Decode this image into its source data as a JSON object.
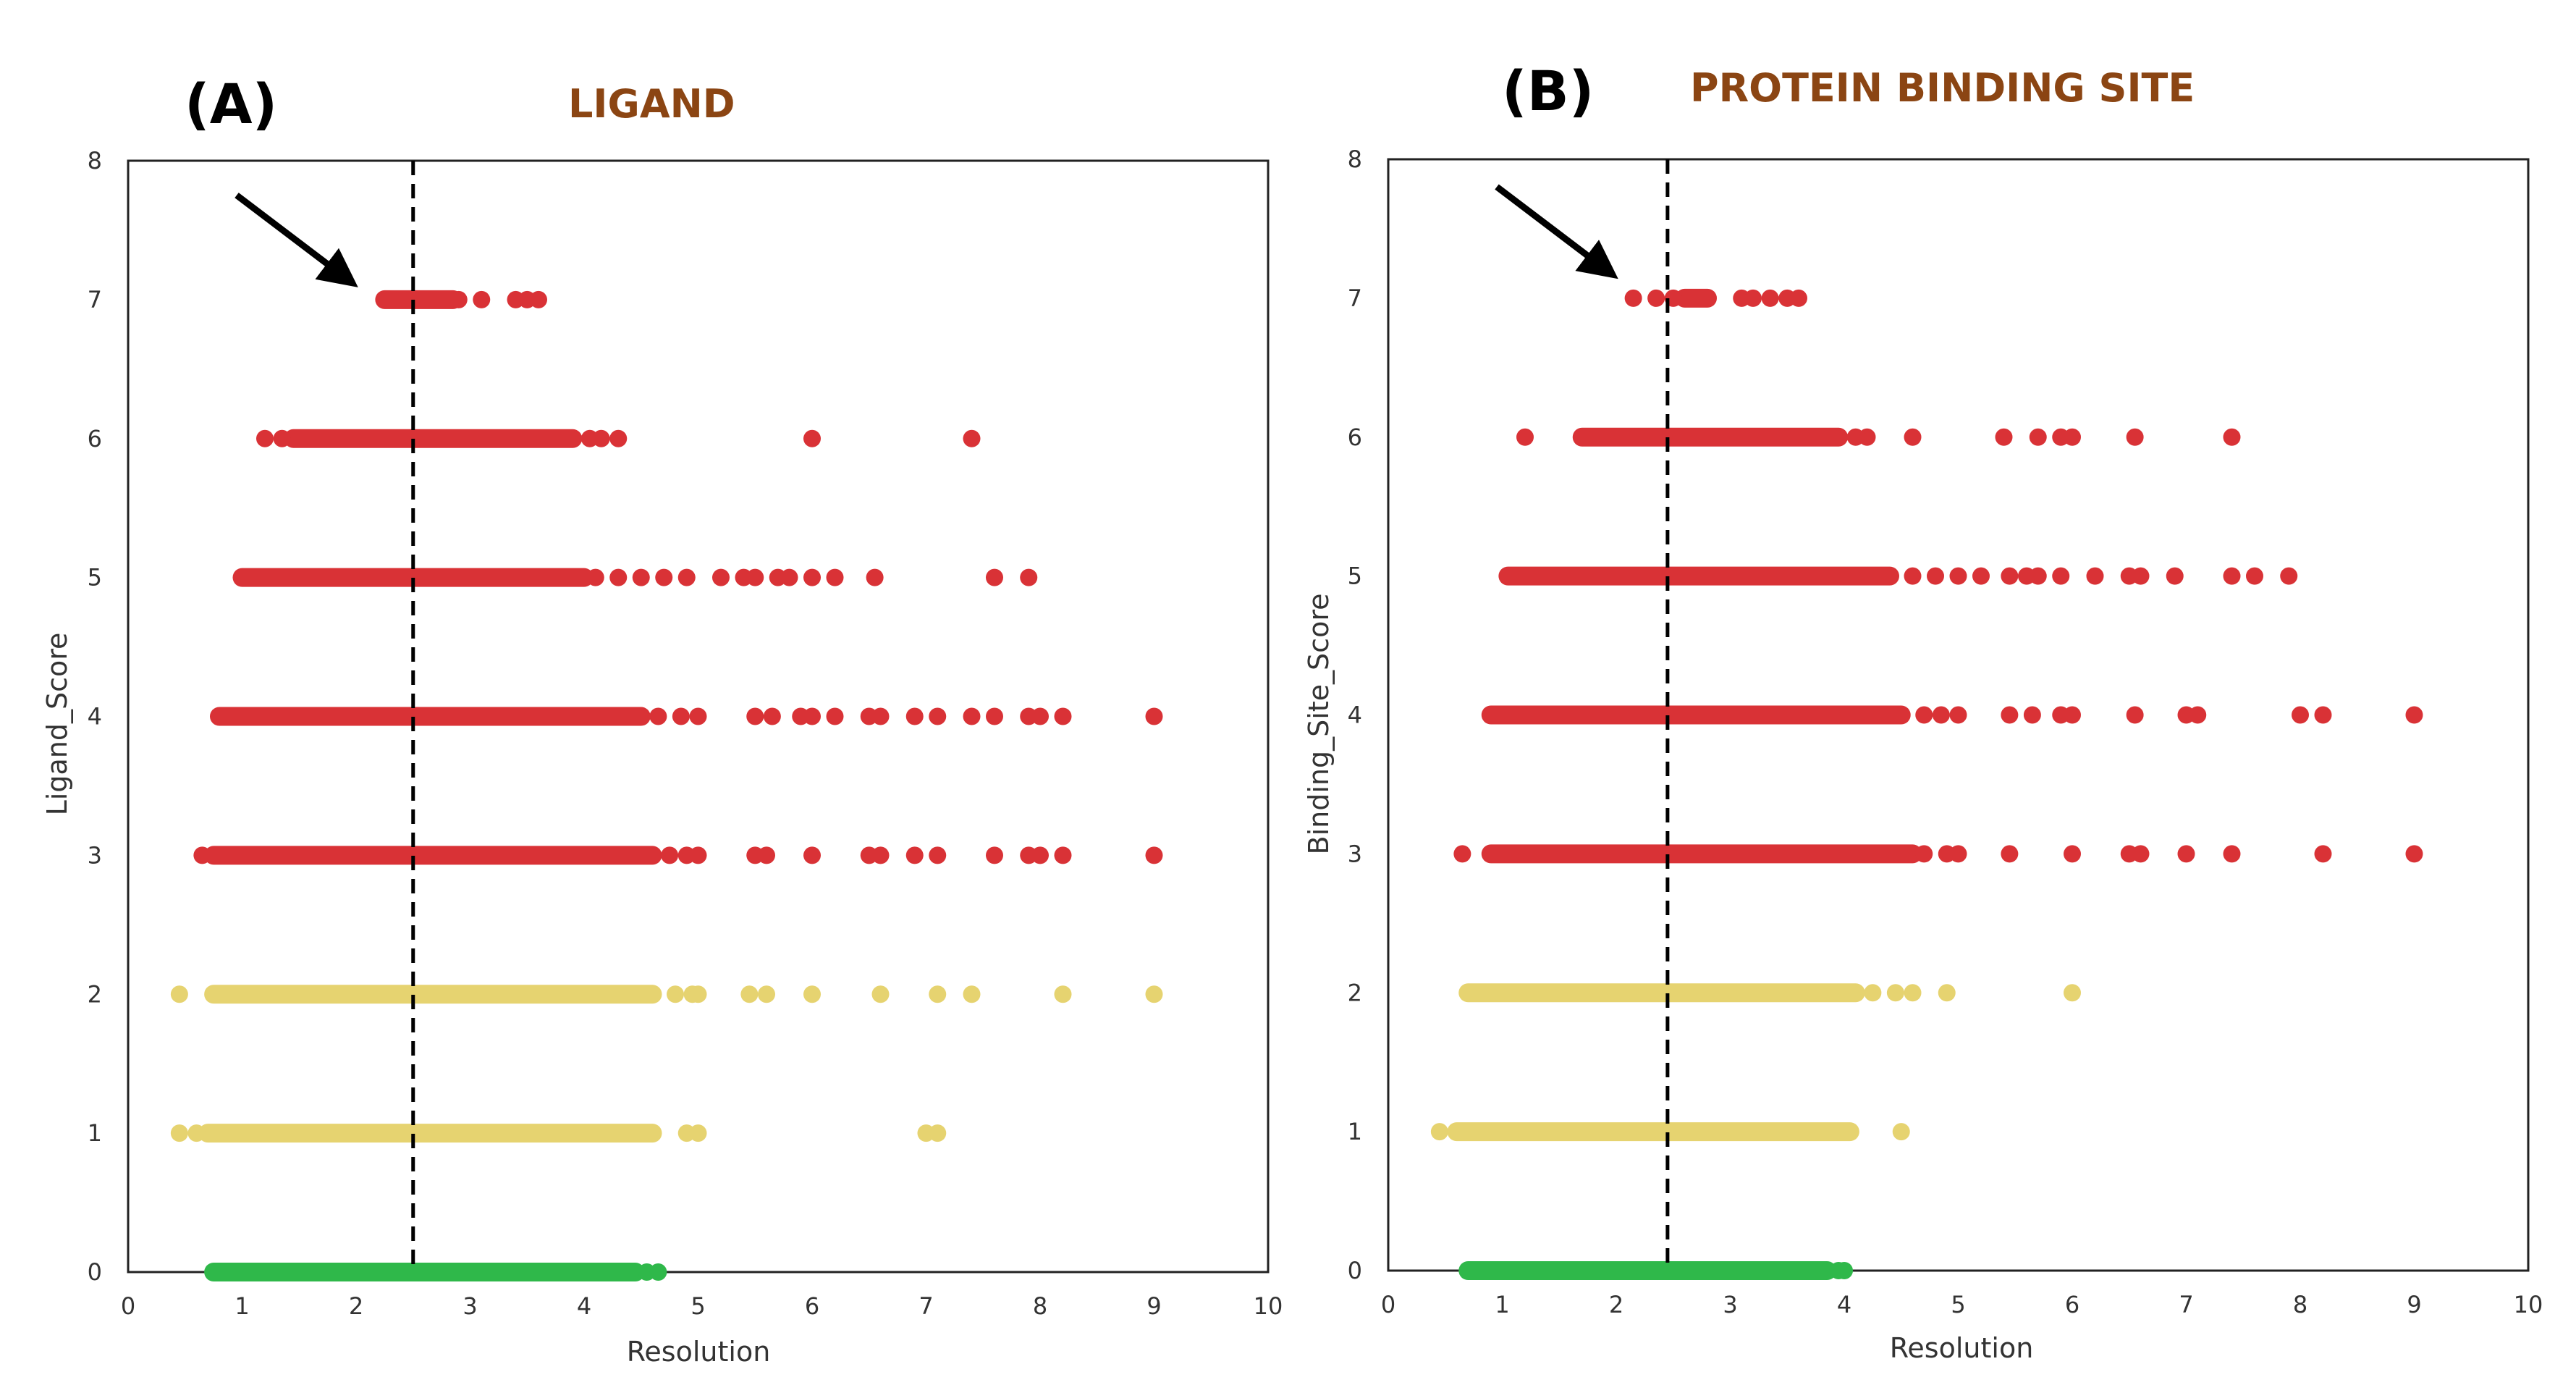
{
  "colors": {
    "high": "#d93236",
    "mid": "#e6d370",
    "low": "#2fb84a",
    "title": "#8b4513"
  },
  "chart_data": [
    {
      "type": "scatter",
      "panel_label": "(A)",
      "title": "LIGAND",
      "xlabel": "Resolution",
      "ylabel": "Ligand_Score",
      "xlim": [
        0,
        10
      ],
      "ylim": [
        0,
        8
      ],
      "xticks": [
        "0",
        "1",
        "2",
        "3",
        "4",
        "5",
        "6",
        "7",
        "8",
        "9",
        "10"
      ],
      "yticks": [
        "0",
        "1",
        "2",
        "3",
        "4",
        "5",
        "6",
        "7",
        "8"
      ],
      "threshold_x": 2.5,
      "arrow_target": [
        2.0,
        7.1
      ],
      "series": [
        {
          "name": "score 7",
          "y": 7,
          "color_key": "high",
          "band": [
            2.25,
            2.85
          ],
          "points": [
            2.9,
            3.1,
            3.4,
            3.5,
            3.6
          ]
        },
        {
          "name": "score 6",
          "y": 6,
          "color_key": "high",
          "band": [
            1.45,
            3.9
          ],
          "points": [
            1.2,
            1.35,
            4.05,
            4.15,
            4.3,
            6.0,
            7.4
          ]
        },
        {
          "name": "score 5",
          "y": 5,
          "color_key": "high",
          "band": [
            1.0,
            4.0
          ],
          "points": [
            4.1,
            4.3,
            4.5,
            4.7,
            4.9,
            5.2,
            5.4,
            5.5,
            5.7,
            5.8,
            6.0,
            6.2,
            6.55,
            7.6,
            7.9
          ]
        },
        {
          "name": "score 4",
          "y": 4,
          "color_key": "high",
          "band": [
            0.8,
            4.5
          ],
          "points": [
            4.65,
            4.85,
            5.0,
            5.5,
            5.65,
            5.9,
            6.0,
            6.2,
            6.5,
            6.6,
            6.9,
            7.1,
            7.4,
            7.6,
            7.9,
            8.0,
            8.2,
            9.0
          ]
        },
        {
          "name": "score 3",
          "y": 3,
          "color_key": "high",
          "band": [
            0.75,
            4.6
          ],
          "points": [
            0.65,
            4.75,
            4.9,
            5.0,
            5.5,
            5.6,
            6.0,
            6.5,
            6.6,
            6.9,
            7.1,
            7.6,
            7.9,
            8.0,
            8.2,
            9.0
          ]
        },
        {
          "name": "score 2",
          "y": 2,
          "color_key": "mid",
          "band": [
            0.75,
            4.6
          ],
          "points": [
            0.45,
            4.8,
            4.95,
            5.0,
            5.45,
            5.6,
            6.0,
            6.6,
            7.1,
            7.4,
            8.2,
            9.0
          ]
        },
        {
          "name": "score 1",
          "y": 1,
          "color_key": "mid",
          "band": [
            0.7,
            4.6
          ],
          "points": [
            0.45,
            0.6,
            4.9,
            5.0,
            7.0,
            7.1
          ]
        },
        {
          "name": "score 0",
          "y": 0,
          "color_key": "low",
          "band": [
            0.75,
            4.45
          ],
          "points": [
            4.55,
            4.65
          ]
        }
      ]
    },
    {
      "type": "scatter",
      "panel_label": "(B)",
      "title": "PROTEIN BINDING SITE",
      "xlabel": "Resolution",
      "ylabel": "Binding_Site_Score",
      "xlim": [
        0,
        10
      ],
      "ylim": [
        0,
        8
      ],
      "xticks": [
        "0",
        "1",
        "2",
        "3",
        "4",
        "5",
        "6",
        "7",
        "8",
        "9",
        "10"
      ],
      "yticks": [
        "0",
        "1",
        "2",
        "3",
        "4",
        "5",
        "6",
        "7",
        "8"
      ],
      "threshold_x": 2.45,
      "arrow_target": [
        2.0,
        7.15
      ],
      "series": [
        {
          "name": "score 7",
          "y": 7,
          "color_key": "high",
          "band": [
            2.6,
            2.8
          ],
          "points": [
            2.15,
            2.35,
            2.5,
            2.65,
            3.1,
            3.2,
            3.35,
            3.5,
            3.6
          ]
        },
        {
          "name": "score 6",
          "y": 6,
          "color_key": "high",
          "band": [
            1.7,
            3.95
          ],
          "points": [
            1.2,
            4.1,
            4.2,
            4.6,
            5.4,
            5.7,
            5.9,
            6.0,
            6.55,
            7.4
          ]
        },
        {
          "name": "score 5",
          "y": 5,
          "color_key": "high",
          "band": [
            1.05,
            4.4
          ],
          "points": [
            4.6,
            4.8,
            5.0,
            5.2,
            5.45,
            5.6,
            5.7,
            5.9,
            6.2,
            6.5,
            6.6,
            6.9,
            7.4,
            7.6,
            7.9
          ]
        },
        {
          "name": "score 4",
          "y": 4,
          "color_key": "high",
          "band": [
            0.9,
            4.5
          ],
          "points": [
            4.7,
            4.85,
            5.0,
            5.45,
            5.65,
            5.9,
            6.0,
            6.55,
            7.0,
            7.1,
            8.0,
            8.2,
            9.0
          ]
        },
        {
          "name": "score 3",
          "y": 3,
          "color_key": "high",
          "band": [
            0.9,
            4.6
          ],
          "points": [
            0.65,
            4.7,
            4.9,
            5.0,
            5.45,
            6.0,
            6.5,
            6.6,
            7.0,
            7.4,
            8.2,
            9.0
          ]
        },
        {
          "name": "score 2",
          "y": 2,
          "color_key": "mid",
          "band": [
            0.7,
            4.1
          ],
          "points": [
            4.25,
            4.45,
            4.6,
            4.9,
            6.0
          ]
        },
        {
          "name": "score 1",
          "y": 1,
          "color_key": "mid",
          "band": [
            0.6,
            4.05
          ],
          "points": [
            0.45,
            4.5
          ]
        },
        {
          "name": "score 0",
          "y": 0,
          "color_key": "low",
          "band": [
            0.7,
            3.85
          ],
          "points": [
            3.95,
            4.0
          ]
        }
      ]
    }
  ]
}
